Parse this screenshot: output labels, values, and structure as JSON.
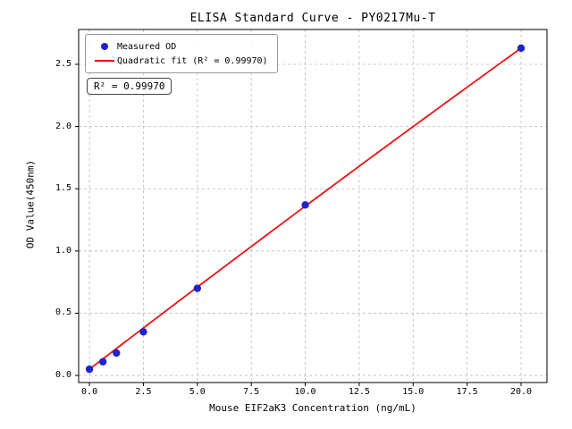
{
  "chart_data": {
    "type": "scatter",
    "title": "ELISA Standard Curve - PY0217Mu-T",
    "xlabel": "Mouse EIF2aK3 Concentration (ng/mL)",
    "ylabel": "OD Value(450nm)",
    "x_ticks": [
      0.0,
      2.5,
      5.0,
      7.5,
      10.0,
      12.5,
      15.0,
      17.5,
      20.0
    ],
    "x_tick_labels": [
      "0.0",
      "2.5",
      "5.0",
      "7.5",
      "10.0",
      "12.5",
      "15.0",
      "17.5",
      "20.0"
    ],
    "y_ticks": [
      0.0,
      0.5,
      1.0,
      1.5,
      2.0,
      2.5
    ],
    "y_tick_labels": [
      "0.0",
      "0.5",
      "1.0",
      "1.5",
      "2.0",
      "2.5"
    ],
    "xlim": [
      -0.5,
      21.2
    ],
    "ylim": [
      -0.057,
      2.78
    ],
    "grid": true,
    "grid_style": "dashed",
    "legend": {
      "position": "upper-left",
      "entries": [
        {
          "label": "Measured OD",
          "marker": "dot",
          "color": "#2222cc"
        },
        {
          "label": "Quadratic fit (R² = 0.99970)",
          "marker": "line",
          "color": "#ee1111"
        }
      ]
    },
    "annotation": "R² = 0.99970",
    "r_squared": 0.9997,
    "series": [
      {
        "name": "Measured OD",
        "type": "scatter",
        "color": "#2222cc",
        "x": [
          0,
          0.625,
          1.25,
          2.5,
          5,
          10,
          20
        ],
        "y": [
          0.05,
          0.11,
          0.18,
          0.35,
          0.7,
          1.37,
          2.63
        ]
      },
      {
        "name": "Quadratic fit",
        "type": "line",
        "color": "#ee1111",
        "fit_coefficients": {
          "a": 0.05,
          "b": 0.133,
          "c": -0.0002
        },
        "x_range": [
          0,
          20
        ]
      }
    ],
    "colors": {
      "grid": "#bcbcbc",
      "axis": "#000000",
      "scatter": "#2222cc",
      "fit": "#ee1111",
      "background": "#ffffff"
    }
  }
}
